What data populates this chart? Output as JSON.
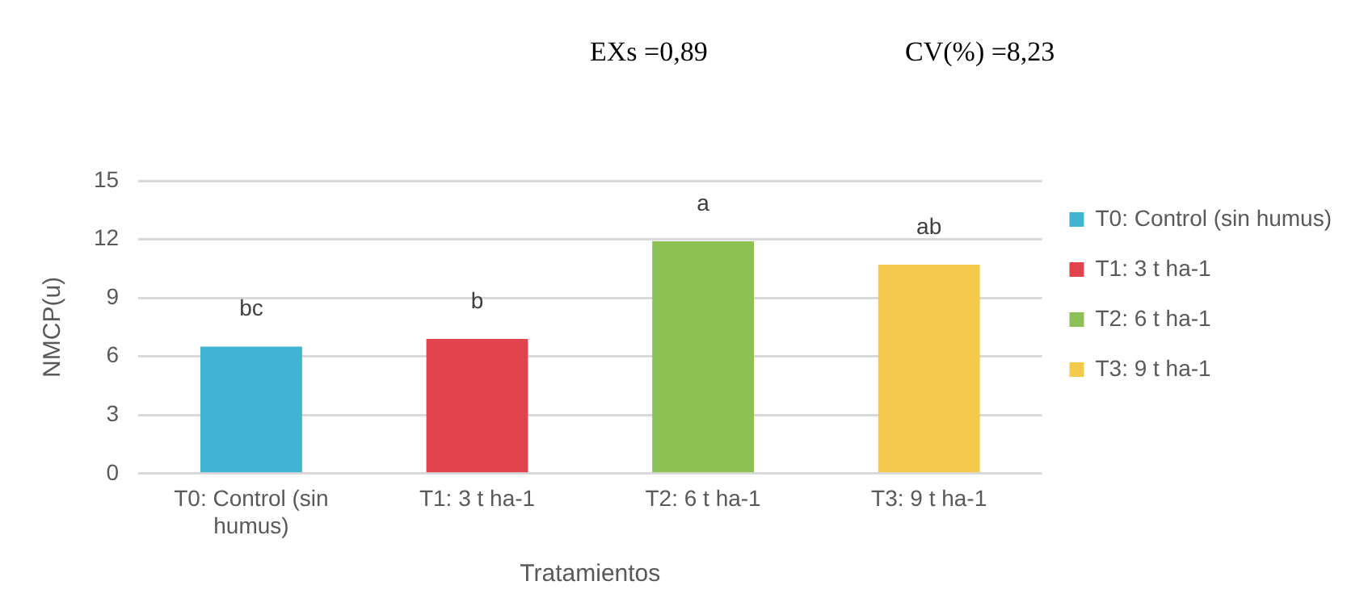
{
  "chart_data": {
    "type": "bar",
    "categories": [
      "T0: Control (sin humus)",
      "T1: 3 t ha-1",
      "T2: 6 t ha-1",
      "T3: 9 t ha-1"
    ],
    "series": [
      {
        "name": "T0: Control (sin humus)",
        "color": "#41b3d3",
        "values": [
          6.5,
          null,
          null,
          null
        ]
      },
      {
        "name": "T1: 3 t ha-1",
        "color": "#e0434c",
        "values": [
          null,
          6.9,
          null,
          null
        ]
      },
      {
        "name": "T2: 6 t ha-1",
        "color": "#8dc153",
        "values": [
          null,
          null,
          11.9,
          null
        ]
      },
      {
        "name": "T3: 9 t ha-1",
        "color": "#f2c94a",
        "values": [
          null,
          null,
          null,
          10.7
        ]
      }
    ],
    "xlabel": "Tratamientos",
    "ylabel": "NMCP(u)",
    "ylim": [
      0,
      15
    ],
    "yticks": [
      0,
      3,
      6,
      9,
      12,
      15
    ],
    "grid": "y",
    "legend": "right",
    "annotations": [
      "EXs =0,89",
      "CV(%) =8,23",
      {
        "text": "bc",
        "x": "T0: Control (sin humus)",
        "y": 6.5
      },
      {
        "text": "b",
        "x": "T1: 3 t ha-1",
        "y": 6.9
      },
      {
        "text": "a",
        "x": "T2: 6 t ha-1",
        "y": 11.9
      },
      {
        "text": "ab",
        "x": "T3: 9 t ha-1",
        "y": 10.7
      }
    ]
  }
}
